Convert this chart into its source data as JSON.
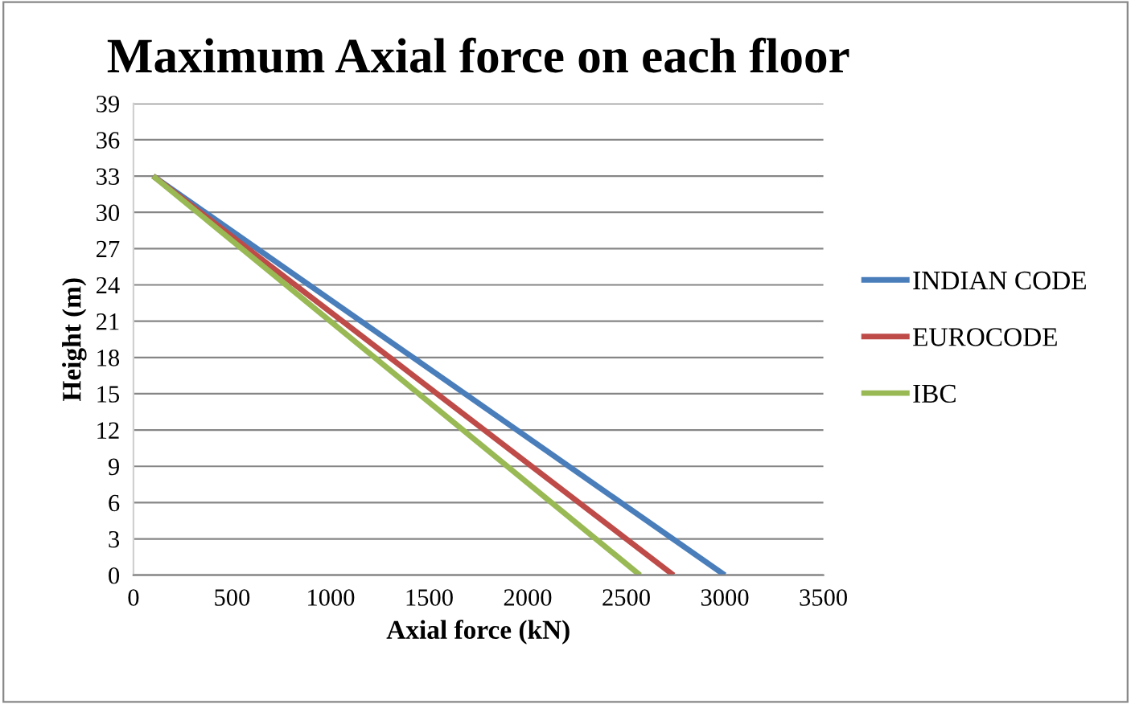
{
  "chart_data": {
    "type": "line",
    "title": "Maximum Axial force on each floor",
    "xlabel": "Axial force (kN)",
    "ylabel": "Height (m)",
    "series": [
      {
        "name": "INDIAN CODE",
        "color": "#4a7ebb",
        "x": [
          100,
          3000
        ],
        "values": [
          33,
          0
        ]
      },
      {
        "name": "EUROCODE",
        "color": "#be4b48",
        "x": [
          100,
          2740
        ],
        "values": [
          33,
          0
        ]
      },
      {
        "name": "IBC",
        "color": "#98b954",
        "x": [
          100,
          2570
        ],
        "values": [
          33,
          0
        ]
      }
    ],
    "xlim": [
      0,
      3500
    ],
    "xticks": [
      0,
      500,
      1000,
      1500,
      2000,
      2500,
      3000,
      3500
    ],
    "ylim": [
      0,
      39
    ],
    "yticks": [
      0,
      3,
      6,
      9,
      12,
      15,
      18,
      21,
      24,
      27,
      30,
      33,
      36,
      39
    ],
    "grid": "y",
    "legend": "right",
    "marker": "none",
    "line_style": "solid"
  }
}
